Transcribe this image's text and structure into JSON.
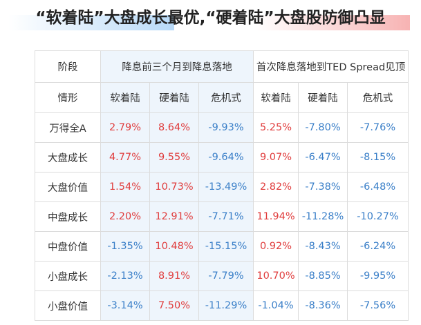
{
  "title": "“软着陆”大盘成长最优,“硬着陆”大盘股防御凸显",
  "header": {
    "stage_label": "阶段",
    "period1": "降息前三个月到降息落地",
    "period2": "首次降息落地到TED Spread见顶",
    "situation_label": "情形",
    "subheaders": [
      "软着陆",
      "硬着陆",
      "危机式",
      "软着陆",
      "硬着陆",
      "危机式"
    ]
  },
  "rows": [
    {
      "label": "万得全A",
      "values": [
        "2.79%",
        "8.64%",
        "-9.93%",
        "5.25%",
        "-7.80%",
        "-7.76%"
      ]
    },
    {
      "label": "大盘成长",
      "values": [
        "4.77%",
        "9.55%",
        "-9.64%",
        "9.07%",
        "-6.47%",
        "-8.15%"
      ]
    },
    {
      "label": "大盘价值",
      "values": [
        "1.54%",
        "10.73%",
        "-13.49%",
        "2.82%",
        "-7.38%",
        "-6.48%"
      ]
    },
    {
      "label": "中盘成长",
      "values": [
        "2.20%",
        "12.91%",
        "-7.71%",
        "11.94%",
        "-11.28%",
        "-10.27%"
      ]
    },
    {
      "label": "中盘价值",
      "values": [
        "-1.35%",
        "10.48%",
        "-15.15%",
        "0.92%",
        "-8.43%",
        "-6.24%"
      ]
    },
    {
      "label": "小盘成长",
      "values": [
        "-2.13%",
        "8.91%",
        "-7.79%",
        "10.70%",
        "-8.85%",
        "-9.95%"
      ]
    },
    {
      "label": "小盘价值",
      "values": [
        "-3.14%",
        "7.50%",
        "-11.29%",
        "-1.04%",
        "-8.36%",
        "-7.56%"
      ]
    }
  ],
  "colors": {
    "positive": "#e03c3c",
    "negative": "#3a7fc8",
    "period1_bg": "#eef5fc",
    "grid": "#dcdcdc"
  }
}
